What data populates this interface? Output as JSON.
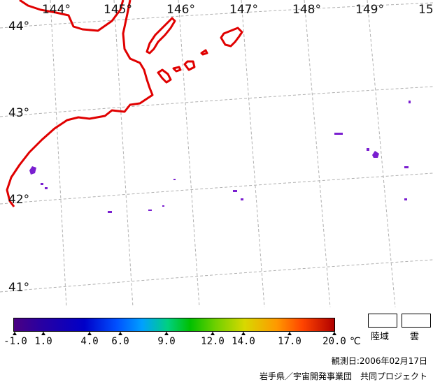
{
  "map": {
    "longitude_labels": [
      "144°",
      "145°",
      "146°",
      "147°",
      "148°",
      "149°",
      "15"
    ],
    "latitude_labels": [
      "44°",
      "43°",
      "42°",
      "41°"
    ],
    "coastline_color": "#e00000",
    "grid_color": "#b0b0b0",
    "sst_patch_color": "#7a1fd0"
  },
  "colorbar": {
    "tick_labels": [
      "-1.0",
      "1.0",
      "4.0",
      "6.0",
      "9.0",
      "12.0",
      "14.0",
      "17.0",
      "20.0"
    ],
    "unit": "℃"
  },
  "legend": {
    "land_label": "陸域",
    "cloud_label": "雲"
  },
  "footer": {
    "observation_date": "観測日:2006年02月17日",
    "credit": "岩手県／宇宙開発事業団　共同プロジェクト"
  }
}
